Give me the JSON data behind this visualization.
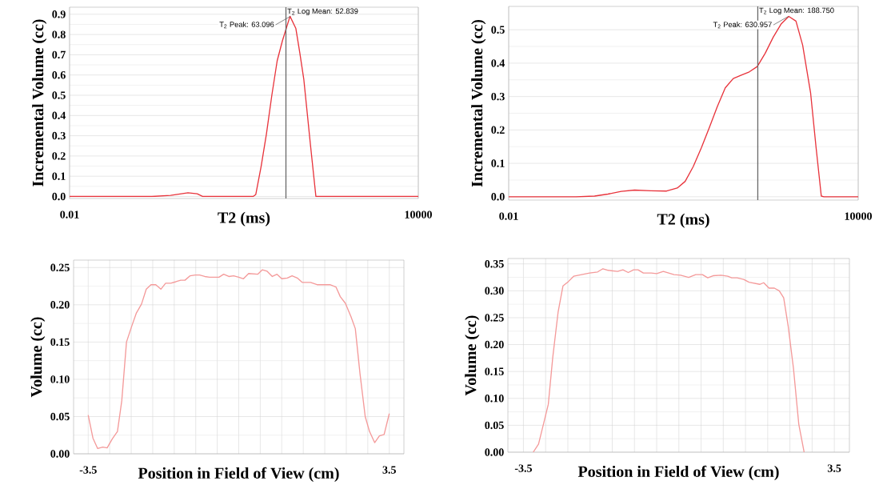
{
  "chart_data": [
    {
      "type": "line",
      "xlabel": "T2 (ms)",
      "ylabel": "Incremental Volume (cc)",
      "log": "x",
      "grid": true,
      "xlim": [
        0.01,
        10000
      ],
      "ylim": [
        -0.01,
        0.935
      ],
      "xticks": [
        0.01,
        10000
      ],
      "yticks": [
        {
          "value": 0,
          "label": "0.0"
        },
        0.1,
        0.2,
        0.3,
        0.4,
        0.5,
        0.6,
        0.7,
        0.8,
        0.9
      ],
      "series": [
        {
          "color": "#e8343c",
          "x": [
            0.01,
            0.046,
            0.26,
            0.546,
            1.09,
            1.57,
            1.94,
            14.4,
            16.0,
            19.8,
            24.4,
            30.2,
            37.3,
            46.0,
            62.0,
            78.2,
            91.4,
            107,
            140,
            173,
            10000
          ],
          "values": [
            0,
            0,
            0,
            0.005,
            0.018,
            0.013,
            0,
            0,
            0.01,
            0.15,
            0.31,
            0.5,
            0.67,
            0.77,
            0.89,
            0.83,
            0.71,
            0.58,
            0.25,
            0,
            0
          ]
        }
      ],
      "ref_lines": [
        {
          "axis": "x",
          "value": 52.839,
          "label": "T$_{2}$ Log Mean: 52.839",
          "color": "#666666"
        }
      ],
      "annotations": [
        {
          "text": "T$_{2}$ Peak: 63.096",
          "x": 63.096,
          "y": 0.89
        }
      ]
    },
    {
      "type": "line",
      "xlabel": "T2 (ms)",
      "ylabel": "Incremental Volume (cc)",
      "log": "x",
      "grid": true,
      "xlim": [
        0.01,
        10000
      ],
      "ylim": [
        -0.01,
        0.57
      ],
      "xticks": [
        0.01,
        10000
      ],
      "yticks": [
        {
          "value": 0,
          "label": "0.0"
        },
        0.1,
        0.2,
        0.3,
        0.4,
        0.5
      ],
      "series": [
        {
          "color": "#e8343c",
          "x": [
            0.01,
            0.143,
            0.298,
            0.505,
            0.855,
            1.45,
            2.73,
            5.14,
            7.83,
            10.7,
            14.7,
            20.2,
            27.7,
            38.1,
            52.2,
            71.6,
            98.4,
            135,
            185,
            254,
            348,
            478,
            643,
            854,
            1112,
            1525,
            1884,
            2323,
            2580,
            10000
          ],
          "values": [
            0,
            0,
            0.002,
            0.008,
            0.016,
            0.02,
            0.018,
            0.017,
            0.026,
            0.046,
            0.09,
            0.146,
            0.206,
            0.27,
            0.326,
            0.354,
            0.364,
            0.374,
            0.39,
            0.43,
            0.478,
            0.518,
            0.54,
            0.526,
            0.454,
            0.31,
            0.15,
            0.002,
            0,
            0
          ]
        }
      ],
      "ref_lines": [
        {
          "axis": "x",
          "value": 188.75,
          "label": "T$_{2}$ Log Mean: 188.750",
          "color": "#666666"
        }
      ],
      "annotations": [
        {
          "text": "T$_{2}$ Peak: 630.957",
          "x": 630.957,
          "y": 0.54
        }
      ]
    },
    {
      "type": "line",
      "xlabel": "Position in Field of View (cm)",
      "ylabel": "Volume (cc)",
      "grid": true,
      "xlim": [
        -3.84,
        3.84
      ],
      "ylim": [
        0,
        0.26
      ],
      "xticks": [
        -3.5,
        {
          "value": -3.0,
          "label": null
        },
        {
          "value": -2.5,
          "label": null
        },
        {
          "value": -2.0,
          "label": null
        },
        {
          "value": -1.5,
          "label": null
        },
        {
          "value": -1.0,
          "label": null
        },
        {
          "value": -0.5,
          "label": null
        },
        {
          "value": 0,
          "label": null
        },
        {
          "value": 0.5,
          "label": null
        },
        {
          "value": 1.0,
          "label": null
        },
        {
          "value": 1.5,
          "label": null
        },
        {
          "value": 2.0,
          "label": null
        },
        {
          "value": 2.5,
          "label": null
        },
        {
          "value": 3.0,
          "label": null
        },
        3.5
      ],
      "yticks": [
        {
          "value": 0,
          "label": "0.00"
        },
        {
          "value": 0.05,
          "label": "0.05"
        },
        {
          "value": 0.1,
          "label": "0.10"
        },
        {
          "value": 0.15,
          "label": "0.15"
        },
        {
          "value": 0.2,
          "label": "0.20"
        },
        {
          "value": 0.25,
          "label": "0.25"
        }
      ],
      "series": [
        {
          "color": "#f49a9a",
          "x": [
            -3.5,
            -3.39,
            -3.28,
            -3.16,
            -3.06,
            -2.94,
            -2.82,
            -2.72,
            -2.61,
            -2.49,
            -2.38,
            -2.26,
            -2.15,
            -2.04,
            -1.93,
            -1.81,
            -1.7,
            -1.58,
            -1.46,
            -1.35,
            -1.25,
            -1.13,
            -1.01,
            -0.91,
            -0.79,
            -0.68,
            -0.46,
            -0.35,
            -0.23,
            -0.12,
            0.0,
            0.11,
            0.23,
            0.44,
            0.55,
            0.66,
            0.78,
            0.89,
            1.0,
            1.13,
            1.24,
            1.36,
            1.48,
            1.67,
            1.82,
            2.12,
            2.26,
            2.36,
            2.48,
            2.61,
            2.71,
            2.82,
            2.94,
            3.04,
            3.16,
            3.27,
            3.38,
            3.5
          ],
          "values": [
            0.052,
            0.021,
            0.007,
            0.009,
            0.008,
            0.02,
            0.03,
            0.071,
            0.15,
            0.171,
            0.189,
            0.201,
            0.221,
            0.227,
            0.227,
            0.221,
            0.229,
            0.229,
            0.231,
            0.233,
            0.233,
            0.239,
            0.24,
            0.24,
            0.238,
            0.237,
            0.237,
            0.241,
            0.238,
            0.239,
            0.237,
            0.235,
            0.242,
            0.241,
            0.247,
            0.245,
            0.238,
            0.241,
            0.235,
            0.236,
            0.239,
            0.236,
            0.23,
            0.23,
            0.227,
            0.227,
            0.224,
            0.211,
            0.202,
            0.184,
            0.168,
            0.107,
            0.05,
            0.03,
            0.015,
            0.024,
            0.026,
            0.054
          ]
        }
      ]
    },
    {
      "type": "line",
      "xlabel": "Position in Field of View (cm)",
      "ylabel": "Volume (cc)",
      "grid": true,
      "xlim": [
        -3.85,
        3.84
      ],
      "ylim": [
        0,
        0.36
      ],
      "xticks": [
        -3.5,
        {
          "value": -3.0,
          "label": null
        },
        {
          "value": -2.5,
          "label": null
        },
        {
          "value": -2.0,
          "label": null
        },
        {
          "value": -1.5,
          "label": null
        },
        {
          "value": -1.0,
          "label": null
        },
        {
          "value": -0.5,
          "label": null
        },
        {
          "value": 0,
          "label": null
        },
        {
          "value": 0.5,
          "label": null
        },
        {
          "value": 1.0,
          "label": null
        },
        {
          "value": 1.5,
          "label": null
        },
        {
          "value": 2.0,
          "label": null
        },
        {
          "value": 2.5,
          "label": null
        },
        {
          "value": 3.0,
          "label": null
        },
        3.5
      ],
      "yticks": [
        {
          "value": 0,
          "label": "0.00"
        },
        {
          "value": 0.05,
          "label": "0.05"
        },
        {
          "value": 0.1,
          "label": "0.10"
        },
        {
          "value": 0.15,
          "label": "0.15"
        },
        {
          "value": 0.2,
          "label": "0.20"
        },
        {
          "value": 0.25,
          "label": "0.25"
        },
        {
          "value": 0.3,
          "label": "0.30"
        },
        {
          "value": 0.35,
          "label": "0.35"
        }
      ],
      "series": [
        {
          "color": "#f49a9a",
          "x": [
            -3.28,
            -3.16,
            -3.05,
            -2.94,
            -2.84,
            -2.72,
            -2.61,
            -2.49,
            -2.37,
            -2.19,
            -2.01,
            -1.83,
            -1.71,
            -1.59,
            -1.38,
            -1.26,
            -1.14,
            -1.02,
            -0.92,
            -0.8,
            -0.62,
            -0.5,
            -0.35,
            -0.23,
            -0.11,
            0.04,
            0.22,
            0.38,
            0.53,
            0.65,
            0.77,
            0.95,
            1.1,
            1.19,
            1.31,
            1.46,
            1.58,
            1.7,
            1.82,
            1.91,
            2.03,
            2.15,
            2.26,
            2.36,
            2.46,
            2.58,
            2.7,
            2.82
          ],
          "values": [
            0,
            0.015,
            0.052,
            0.089,
            0.176,
            0.26,
            0.309,
            0.317,
            0.327,
            0.33,
            0.333,
            0.335,
            0.341,
            0.338,
            0.336,
            0.339,
            0.334,
            0.339,
            0.339,
            0.333,
            0.333,
            0.332,
            0.336,
            0.333,
            0.33,
            0.329,
            0.325,
            0.33,
            0.33,
            0.324,
            0.328,
            0.329,
            0.327,
            0.324,
            0.324,
            0.321,
            0.316,
            0.314,
            0.312,
            0.315,
            0.305,
            0.305,
            0.3,
            0.287,
            0.235,
            0.156,
            0.052,
            0
          ]
        }
      ]
    }
  ]
}
